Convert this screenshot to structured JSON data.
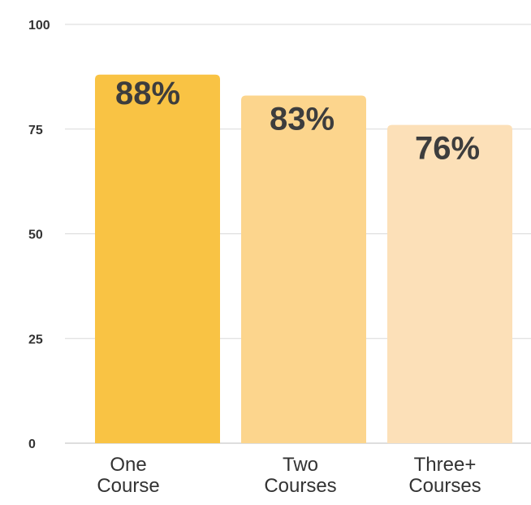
{
  "chart_data": {
    "type": "bar",
    "categories": [
      [
        "One",
        "Course"
      ],
      [
        "Two",
        "Courses"
      ],
      [
        "Three+",
        "Courses"
      ]
    ],
    "values": [
      88,
      83,
      76
    ],
    "data_labels": [
      "88%",
      "83%",
      "76%"
    ],
    "bar_colors": [
      "#f9c344",
      "#fcd58d",
      "#fce0b8"
    ],
    "title": "",
    "xlabel": "",
    "ylabel": "",
    "ylim": [
      0,
      100
    ],
    "yticks": [
      0,
      25,
      50,
      75,
      100
    ],
    "ytick_labels": [
      "0",
      "25",
      "50",
      "75",
      "100"
    ],
    "grid": true,
    "legend": "none"
  }
}
